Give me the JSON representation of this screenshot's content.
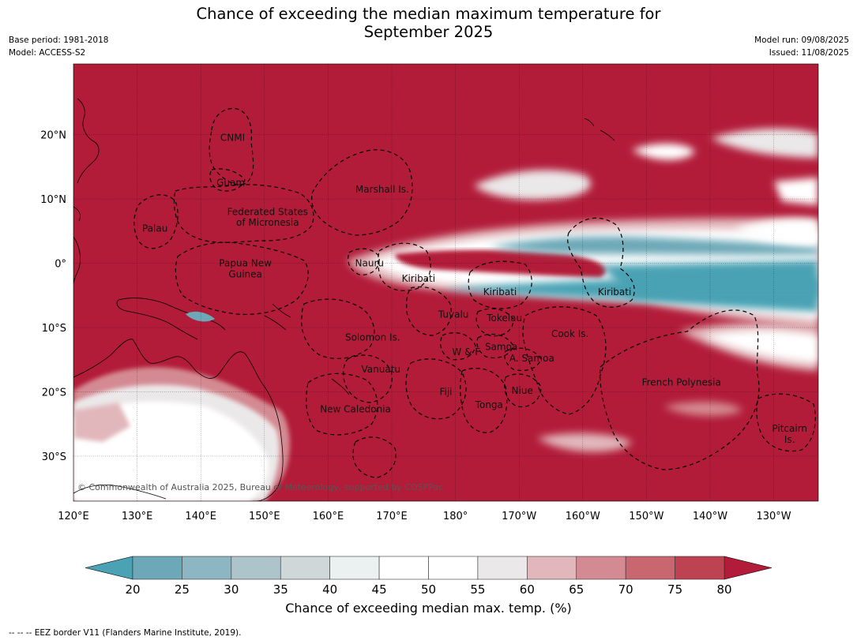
{
  "title_line1": "Chance of exceeding the median maximum temperature for",
  "title_line2": "September 2025",
  "meta": {
    "base_period": "Base period: 1981-2018",
    "model": "Model: ACCESS-S2",
    "model_run": "Model run: 09/08/2025",
    "issued": "Issued: 11/08/2025"
  },
  "lat_labels": [
    {
      "text": "20°N",
      "lat": 20
    },
    {
      "text": "10°N",
      "lat": 10
    },
    {
      "text": "0°",
      "lat": 0
    },
    {
      "text": "10°S",
      "lat": -10
    },
    {
      "text": "20°S",
      "lat": -20
    },
    {
      "text": "30°S",
      "lat": -30
    }
  ],
  "lon_labels": [
    {
      "text": "120°E",
      "lon": 120
    },
    {
      "text": "130°E",
      "lon": 130
    },
    {
      "text": "140°E",
      "lon": 140
    },
    {
      "text": "150°E",
      "lon": 150
    },
    {
      "text": "160°E",
      "lon": 160
    },
    {
      "text": "170°E",
      "lon": 170
    },
    {
      "text": "180°",
      "lon": 180
    },
    {
      "text": "170°W",
      "lon": 190
    },
    {
      "text": "160°W",
      "lon": 200
    },
    {
      "text": "150°W",
      "lon": 210
    },
    {
      "text": "140°W",
      "lon": 220
    },
    {
      "text": "130°W",
      "lon": 230
    }
  ],
  "extent": {
    "lon_min": 120,
    "lon_max": 237,
    "lat_min": -37,
    "lat_max": 31
  },
  "regions": [
    {
      "text": "CNMI",
      "lon": 145.0,
      "lat": 19.5
    },
    {
      "text": "Guam",
      "lon": 144.7,
      "lat": 12.5
    },
    {
      "text": "Marshall Is.",
      "lon": 168.5,
      "lat": 11.5
    },
    {
      "text": "Federated States",
      "lon": 150.5,
      "lat": 8.0
    },
    {
      "text": "of Micronesia",
      "lon": 150.5,
      "lat": 6.3
    },
    {
      "text": "Palau",
      "lon": 132.8,
      "lat": 5.4
    },
    {
      "text": "Nauru",
      "lon": 166.5,
      "lat": 0.0
    },
    {
      "text": "Papua New",
      "lon": 147.0,
      "lat": 0.0
    },
    {
      "text": "Guinea",
      "lon": 147.0,
      "lat": -1.7
    },
    {
      "text": "Kiribati",
      "lon": 174.2,
      "lat": -2.4
    },
    {
      "text": "Kiribati",
      "lon": 187.0,
      "lat": -4.5
    },
    {
      "text": "Kiribati",
      "lon": 205.0,
      "lat": -4.5
    },
    {
      "text": "Tuvalu",
      "lon": 179.7,
      "lat": -8.0
    },
    {
      "text": "Tokelau",
      "lon": 187.7,
      "lat": -8.5
    },
    {
      "text": "Solomon Is.",
      "lon": 167.0,
      "lat": -11.5
    },
    {
      "text": "Cook Is.",
      "lon": 198.0,
      "lat": -11.0
    },
    {
      "text": "Samoa",
      "lon": 187.2,
      "lat": -13.0
    },
    {
      "text": "W & F",
      "lon": 181.7,
      "lat": -13.8
    },
    {
      "text": "A. Samoa",
      "lon": 192.0,
      "lat": -14.8
    },
    {
      "text": "Vanuatu",
      "lon": 168.3,
      "lat": -16.5
    },
    {
      "text": "French Polynesia",
      "lon": 215.5,
      "lat": -18.5
    },
    {
      "text": "Fiji",
      "lon": 178.5,
      "lat": -20.0
    },
    {
      "text": "Niue",
      "lon": 190.5,
      "lat": -19.8
    },
    {
      "text": "Tonga",
      "lon": 185.3,
      "lat": -22.0
    },
    {
      "text": "New Caledonia",
      "lon": 164.3,
      "lat": -22.7
    },
    {
      "text": "Pitcairn",
      "lon": 232.5,
      "lat": -25.7
    },
    {
      "text": "Is.",
      "lon": 232.5,
      "lat": -27.4
    }
  ],
  "copyright": "© Commonwealth of Australia 2025, Bureau of Meteorology, supported by COSPPac",
  "colorbar": {
    "ticks": [
      "20",
      "25",
      "30",
      "35",
      "40",
      "45",
      "50",
      "55",
      "60",
      "65",
      "70",
      "75",
      "80"
    ],
    "colors": [
      "#6ca8b7",
      "#8cb6c1",
      "#acc4ca",
      "#cfd7d9",
      "#ebf0f1",
      "#ffffff",
      "#ffffff",
      "#ebe8e9",
      "#e1b7bb",
      "#d48a92",
      "#c96771",
      "#bd4252"
    ],
    "under_color": "#4aa2b4",
    "over_color": "#b21c39",
    "label": "Chance of exceeding median max. temp. (%)"
  },
  "footer": "--  --  -- EEZ border V11 (Flanders Marine Institute, 2019)."
}
